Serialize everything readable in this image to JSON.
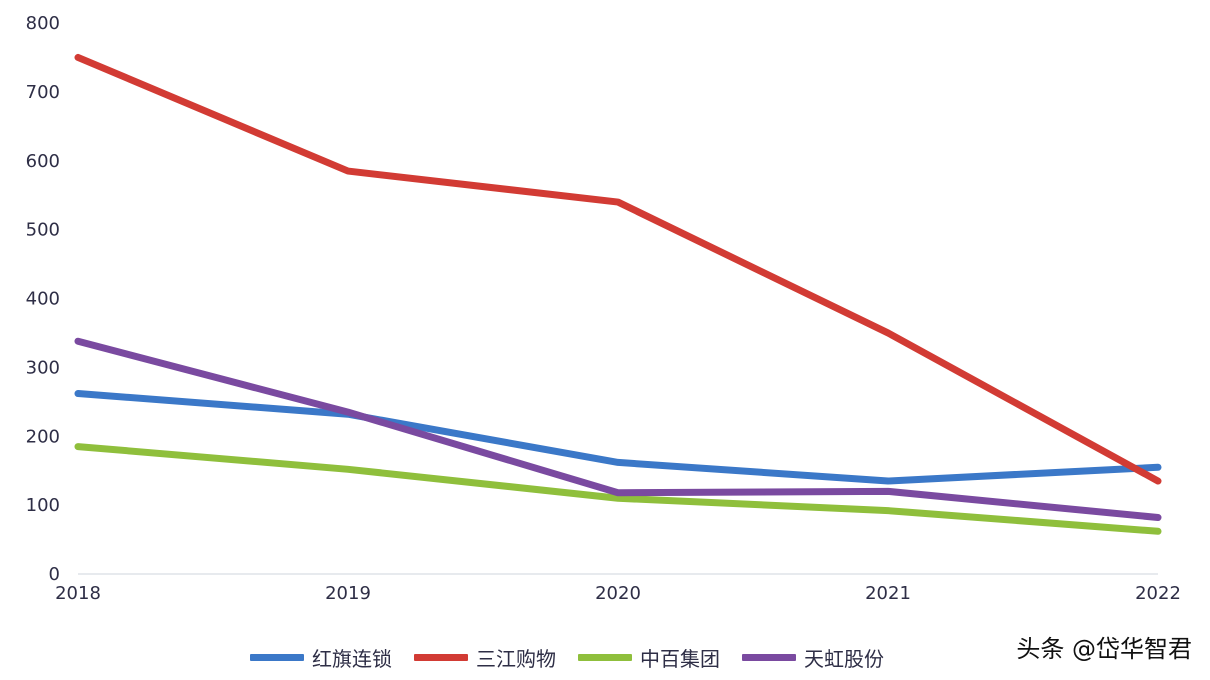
{
  "chart_data": {
    "type": "line",
    "title": "",
    "xlabel": "",
    "ylabel": "",
    "x": [
      "2018",
      "2019",
      "2020",
      "2021",
      "2022"
    ],
    "y_ticks": [
      0,
      100,
      200,
      300,
      400,
      500,
      600,
      700,
      800
    ],
    "ylim": [
      0,
      800
    ],
    "grid": false,
    "legend_position": "bottom",
    "series": [
      {
        "name": "红旗连锁",
        "color": "#3b78c8",
        "values": [
          262,
          232,
          162,
          135,
          155
        ]
      },
      {
        "name": "三江购物",
        "color": "#d23b34",
        "values": [
          750,
          585,
          540,
          350,
          135
        ]
      },
      {
        "name": "中百集团",
        "color": "#8fbf3c",
        "values": [
          185,
          152,
          110,
          92,
          62
        ]
      },
      {
        "name": "天虹股份",
        "color": "#7a4aa0",
        "values": [
          338,
          235,
          118,
          120,
          82
        ]
      }
    ]
  },
  "watermark": {
    "text": "头条 @岱华智君"
  }
}
